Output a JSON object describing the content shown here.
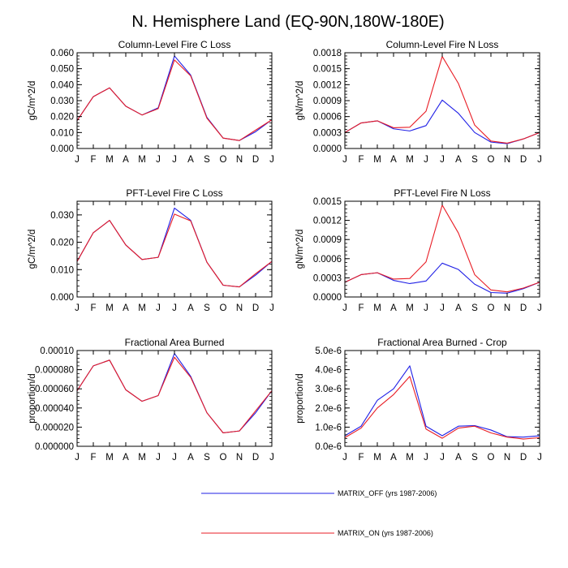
{
  "figure_title": "N. Hemisphere Land (EQ-90N,180W-180E)",
  "colors": {
    "matrix_off": "#1f1fe6",
    "matrix_on": "#e81c24"
  },
  "legend": [
    {
      "label": "MATRIX_OFF (yrs 1987-2006)",
      "color": "#1f1fe6"
    },
    {
      "label": "MATRIX_ON (yrs 1987-2006)",
      "color": "#e81c24"
    }
  ],
  "chart_data": [
    {
      "type": "line",
      "title": "Column-Level Fire C Loss",
      "ylabel": "gC/m^2/d",
      "categories": [
        "J",
        "F",
        "M",
        "A",
        "M",
        "J",
        "J",
        "A",
        "S",
        "O",
        "N",
        "D",
        "J"
      ],
      "ylim": [
        0,
        0.06
      ],
      "yticks": [
        0,
        0.01,
        0.02,
        0.03,
        0.04,
        0.05,
        0.06
      ],
      "ytick_labels": [
        "0.000",
        "0.010",
        "0.020",
        "0.030",
        "0.040",
        "0.050",
        "0.060"
      ],
      "series": [
        {
          "name": "MATRIX_OFF (yrs 1987-2006)",
          "values": [
            0.0175,
            0.0325,
            0.038,
            0.0265,
            0.021,
            0.0255,
            0.058,
            0.046,
            0.0195,
            0.0065,
            0.005,
            0.0105,
            0.018
          ]
        },
        {
          "name": "MATRIX_ON (yrs 1987-2006)",
          "values": [
            0.0175,
            0.0325,
            0.038,
            0.0265,
            0.021,
            0.025,
            0.0555,
            0.0455,
            0.019,
            0.0065,
            0.005,
            0.0115,
            0.018
          ]
        }
      ]
    },
    {
      "type": "line",
      "title": "Column-Level Fire N Loss",
      "ylabel": "gN/m^2/d",
      "categories": [
        "J",
        "F",
        "M",
        "A",
        "M",
        "J",
        "J",
        "A",
        "S",
        "O",
        "N",
        "D",
        "J"
      ],
      "ylim": [
        0,
        0.0018
      ],
      "yticks": [
        0,
        0.0003,
        0.0006,
        0.0009,
        0.0012,
        0.0015,
        0.0018
      ],
      "ytick_labels": [
        "0.0000",
        "0.0003",
        "0.0006",
        "0.0009",
        "0.0012",
        "0.0015",
        "0.0018"
      ],
      "series": [
        {
          "name": "MATRIX_OFF (yrs 1987-2006)",
          "values": [
            0.0003,
            0.00048,
            0.00052,
            0.00037,
            0.00033,
            0.00043,
            0.00091,
            0.00066,
            0.0003,
            0.00012,
            9e-05,
            0.00018,
            0.0003
          ]
        },
        {
          "name": "MATRIX_ON (yrs 1987-2006)",
          "values": [
            0.0003,
            0.00048,
            0.00052,
            0.00039,
            0.0004,
            0.0007,
            0.00173,
            0.00122,
            0.00044,
            0.00014,
            0.0001,
            0.00018,
            0.0003
          ]
        }
      ]
    },
    {
      "type": "line",
      "title": "PFT-Level Fire C Loss",
      "ylabel": "gC/m^2/d",
      "categories": [
        "J",
        "F",
        "M",
        "A",
        "M",
        "J",
        "J",
        "A",
        "S",
        "O",
        "N",
        "D",
        "J"
      ],
      "ylim": [
        0,
        0.035
      ],
      "yticks": [
        0,
        0.01,
        0.02,
        0.03
      ],
      "ytick_labels": [
        "0.000",
        "0.010",
        "0.020",
        "0.030"
      ],
      "series": [
        {
          "name": "MATRIX_OFF (yrs 1987-2006)",
          "values": [
            0.013,
            0.0235,
            0.028,
            0.019,
            0.0137,
            0.0145,
            0.0325,
            0.028,
            0.0127,
            0.0043,
            0.0037,
            0.008,
            0.013
          ]
        },
        {
          "name": "MATRIX_ON (yrs 1987-2006)",
          "values": [
            0.013,
            0.0235,
            0.028,
            0.019,
            0.0137,
            0.0145,
            0.0303,
            0.0278,
            0.0127,
            0.0043,
            0.0037,
            0.0085,
            0.013
          ]
        }
      ]
    },
    {
      "type": "line",
      "title": "PFT-Level Fire N Loss",
      "ylabel": "gN/m^2/d",
      "categories": [
        "J",
        "F",
        "M",
        "A",
        "M",
        "J",
        "J",
        "A",
        "S",
        "O",
        "N",
        "D",
        "J"
      ],
      "ylim": [
        0,
        0.0015
      ],
      "yticks": [
        0,
        0.0003,
        0.0006,
        0.0009,
        0.0012,
        0.0015
      ],
      "ytick_labels": [
        "0.0000",
        "0.0003",
        "0.0006",
        "0.0009",
        "0.0012",
        "0.0015"
      ],
      "series": [
        {
          "name": "MATRIX_OFF (yrs 1987-2006)",
          "values": [
            0.00023,
            0.00035,
            0.00038,
            0.00026,
            0.00021,
            0.00025,
            0.00053,
            0.00043,
            0.0002,
            7e-05,
            6e-05,
            0.00013,
            0.00023
          ]
        },
        {
          "name": "MATRIX_ON (yrs 1987-2006)",
          "values": [
            0.00023,
            0.00035,
            0.00038,
            0.00028,
            0.00029,
            0.00055,
            0.00144,
            0.001,
            0.00035,
            0.00011,
            8e-05,
            0.00014,
            0.00023
          ]
        }
      ]
    },
    {
      "type": "line",
      "title": "Fractional Area Burned",
      "ylabel": "proportion/d",
      "categories": [
        "J",
        "F",
        "M",
        "A",
        "M",
        "J",
        "J",
        "A",
        "S",
        "O",
        "N",
        "D",
        "J"
      ],
      "ylim": [
        0,
        0.0001
      ],
      "yticks": [
        0,
        2e-05,
        4e-05,
        6e-05,
        8e-05,
        0.0001
      ],
      "ytick_labels": [
        "0.000000",
        "0.000020",
        "0.000040",
        "0.000060",
        "0.000080",
        "0.00010"
      ],
      "series": [
        {
          "name": "MATRIX_OFF (yrs 1987-2006)",
          "values": [
            5.8e-05,
            8.4e-05,
            9e-05,
            5.9e-05,
            4.7e-05,
            5.3e-05,
            9.7e-05,
            7.3e-05,
            3.5e-05,
            1.4e-05,
            1.6e-05,
            3.5e-05,
            5.8e-05
          ]
        },
        {
          "name": "MATRIX_ON (yrs 1987-2006)",
          "values": [
            5.8e-05,
            8.4e-05,
            9e-05,
            5.9e-05,
            4.7e-05,
            5.3e-05,
            9.3e-05,
            7.2e-05,
            3.5e-05,
            1.4e-05,
            1.6e-05,
            3.7e-05,
            5.8e-05
          ]
        }
      ]
    },
    {
      "type": "line",
      "title": "Fractional Area Burned - Crop",
      "ylabel": "proportion/d",
      "categories": [
        "J",
        "F",
        "M",
        "A",
        "M",
        "J",
        "J",
        "A",
        "S",
        "O",
        "N",
        "D",
        "J"
      ],
      "ylim": [
        0,
        5e-06
      ],
      "yticks": [
        0,
        1e-06,
        2e-06,
        3e-06,
        4e-06,
        5e-06
      ],
      "ytick_labels": [
        "0.0e-6",
        "1.0e-6",
        "2.0e-6",
        "3.0e-6",
        "4.0e-6",
        "5.0e-6"
      ],
      "series": [
        {
          "name": "MATRIX_OFF (yrs 1987-2006)",
          "values": [
            5.5e-07,
            1.05e-06,
            2.4e-06,
            3e-06,
            4.2e-06,
            1.05e-06,
            5.5e-07,
            1.05e-06,
            1.08e-06,
            8.5e-07,
            5e-07,
            4.8e-07,
            5.5e-07
          ]
        },
        {
          "name": "MATRIX_ON (yrs 1987-2006)",
          "values": [
            4.5e-07,
            9.5e-07,
            2e-06,
            2.7e-06,
            3.65e-06,
            9e-07,
            4.2e-07,
            9.5e-07,
            1.05e-06,
            7e-07,
            4.8e-07,
            3.8e-07,
            4.5e-07
          ]
        }
      ]
    }
  ]
}
